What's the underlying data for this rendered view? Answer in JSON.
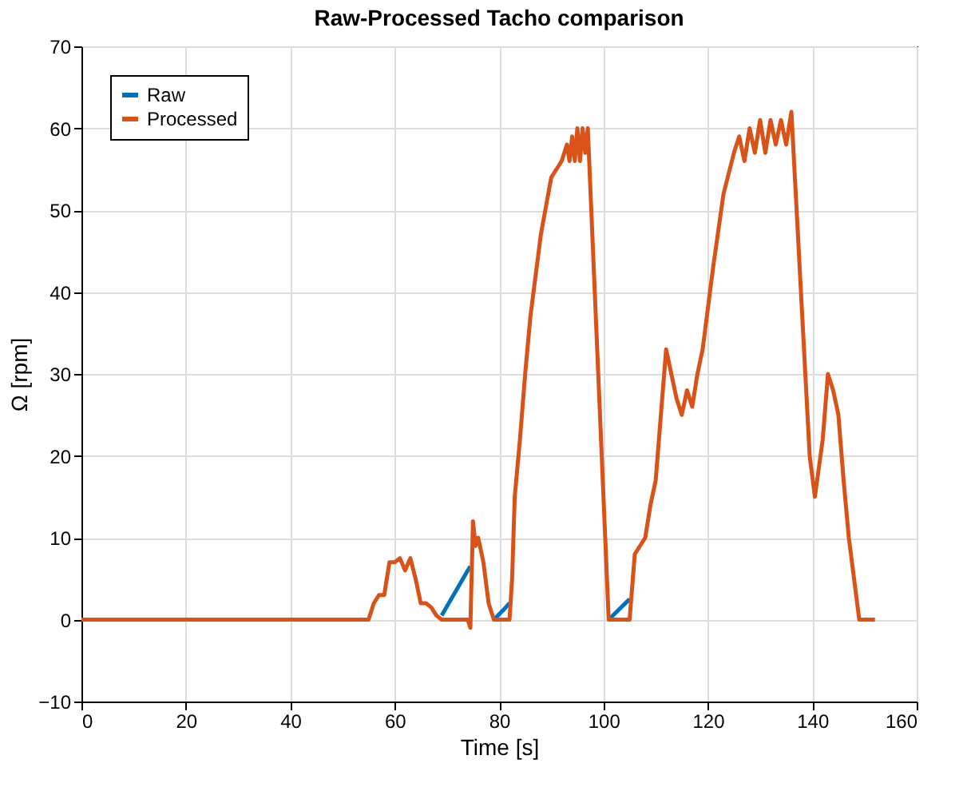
{
  "chart_data": {
    "type": "line",
    "title": "Raw-Processed Tacho comparison",
    "xlabel": "Time [s]",
    "ylabel": "Ω [rpm]",
    "x": [
      0,
      55,
      56,
      57,
      58,
      59,
      60,
      61,
      62,
      63,
      64,
      65,
      66,
      67,
      68,
      69,
      74,
      74.5,
      75,
      75.5,
      76,
      77,
      78,
      79,
      81,
      82,
      82.5,
      83,
      84,
      85,
      86,
      88,
      90,
      92,
      93,
      93.5,
      94,
      94.5,
      95,
      95.5,
      96,
      96.5,
      97,
      98,
      101,
      105,
      106,
      107,
      108,
      109,
      110,
      111,
      112,
      113,
      114,
      115,
      116,
      117,
      118,
      119,
      121,
      123,
      125,
      126,
      127,
      128,
      129,
      130,
      131,
      132,
      133,
      134,
      135,
      136,
      137,
      139.5,
      140.5,
      142,
      143,
      144,
      145,
      146,
      147,
      148,
      149,
      152
    ],
    "series": [
      {
        "name": "Raw",
        "color": "#0072bd",
        "values": [
          null,
          null,
          null,
          null,
          null,
          null,
          null,
          null,
          null,
          null,
          null,
          null,
          null,
          null,
          null,
          0.5,
          6,
          6.5,
          null,
          null,
          null,
          null,
          null,
          0,
          1.3,
          2,
          null,
          null,
          null,
          null,
          null,
          null,
          null,
          null,
          null,
          null,
          null,
          null,
          null,
          null,
          null,
          null,
          null,
          null,
          0,
          2.5,
          null,
          null,
          null,
          null,
          null,
          null,
          null,
          null,
          null,
          null,
          null,
          null,
          null,
          null,
          null,
          null,
          null,
          null,
          null,
          null,
          null,
          null,
          null,
          null,
          null,
          null,
          null,
          null,
          null,
          null,
          null,
          null,
          null,
          null,
          null,
          null,
          null,
          null,
          null,
          null
        ]
      },
      {
        "name": "Processed",
        "color": "#d95319",
        "values": [
          0,
          0,
          2,
          3,
          3,
          7,
          7,
          7.5,
          6,
          7.5,
          5,
          2,
          2,
          1.5,
          0.5,
          0,
          0,
          -1,
          12,
          9,
          10,
          7,
          2,
          0,
          0,
          0,
          5,
          15,
          22,
          30,
          37,
          47,
          54,
          56,
          58,
          56,
          59,
          56,
          60,
          56,
          60,
          57,
          60,
          45,
          0,
          0,
          8,
          9,
          10,
          14,
          17,
          25,
          33,
          30,
          27,
          25,
          28,
          26,
          30,
          33,
          43,
          52,
          57,
          59,
          56,
          60,
          57,
          61,
          57,
          61,
          58,
          61,
          58,
          62,
          50,
          20,
          15,
          22,
          30,
          28,
          25,
          17,
          10,
          5,
          0,
          0
        ]
      }
    ],
    "xlim": [
      0,
      160
    ],
    "xticks": [
      0,
      20,
      40,
      60,
      80,
      100,
      120,
      140,
      160
    ],
    "ylim": [
      -10,
      70
    ],
    "yticks": [
      -10,
      0,
      10,
      20,
      30,
      40,
      50,
      60,
      70
    ],
    "grid": true,
    "legend": "top left",
    "line_style": "solid",
    "marker": "none"
  }
}
